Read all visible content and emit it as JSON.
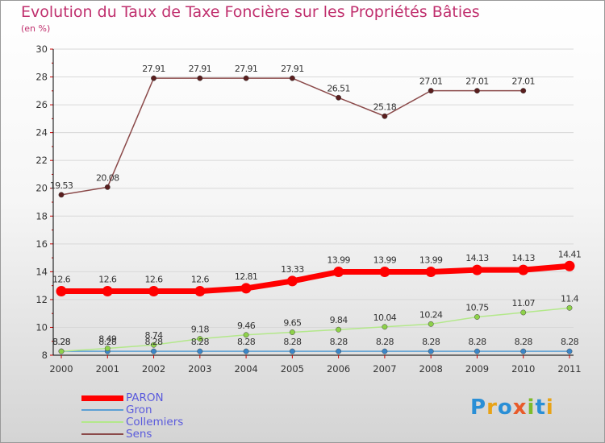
{
  "title": "Evolution du Taux de Taxe Foncière sur les Propriétés Bâties",
  "unit_label": "(en %)",
  "logo": {
    "letters": [
      "P",
      "r",
      "o",
      "x",
      "i",
      "t",
      "i"
    ],
    "colors": [
      "#2a8fd6",
      "#e8a317",
      "#2a8fd6",
      "#e85a2a",
      "#7dbb2a",
      "#2a8fd6",
      "#e8a317"
    ]
  },
  "chart_data": {
    "type": "line",
    "title": "Evolution du Taux de Taxe Foncière sur les Propriétés Bâties",
    "ylabel": "(en %)",
    "x": [
      "2000",
      "2001",
      "2002",
      "2003",
      "2004",
      "2005",
      "2006",
      "2007",
      "2008",
      "2009",
      "2010",
      "2011"
    ],
    "ylim": [
      8,
      30
    ],
    "yticks": [
      "8",
      "10",
      "12",
      "14",
      "16",
      "18",
      "20",
      "22",
      "24",
      "26",
      "28",
      "30"
    ],
    "legend_position": "bottom-left",
    "series": [
      {
        "name": "Gron",
        "color": "#5b9fd4",
        "point_color": "#3a86c8",
        "values": [
          8.28,
          8.28,
          8.28,
          8.28,
          8.28,
          8.28,
          8.28,
          8.28,
          8.28,
          8.28,
          8.28,
          8.28
        ],
        "labels": [
          "8.28",
          "8.28",
          "8.28",
          "8.28",
          "8.28",
          "8.28",
          "8.28",
          "8.28",
          "8.28",
          "8.28",
          "8.28",
          "8.28"
        ]
      },
      {
        "name": "Collemiers",
        "color": "#b3e88a",
        "point_color": "#8ed14a",
        "values": [
          8.28,
          8.49,
          8.74,
          9.18,
          9.46,
          9.65,
          9.84,
          10.04,
          10.24,
          10.75,
          11.07,
          11.4
        ],
        "labels": [
          "8.28",
          "8.49",
          "8.74",
          "9.18",
          "9.46",
          "9.65",
          "9.84",
          "10.04",
          "10.24",
          "10.75",
          "11.07",
          "11.4"
        ]
      },
      {
        "name": "Sens",
        "color": "#8b4a4a",
        "point_color": "#5a1e1e",
        "values": [
          19.53,
          20.08,
          27.91,
          27.91,
          27.91,
          27.91,
          26.51,
          25.18,
          27.01,
          27.01,
          27.01,
          null
        ],
        "labels": [
          "19.53",
          "20.08",
          "27.91",
          "27.91",
          "27.91",
          "27.91",
          "26.51",
          "25.18",
          "27.01",
          "27.01",
          "27.01",
          ""
        ]
      },
      {
        "name": "PARON",
        "color": "#ff0000",
        "point_color": "#ff0000",
        "values": [
          12.6,
          12.6,
          12.6,
          12.6,
          12.81,
          13.33,
          13.99,
          13.99,
          13.99,
          14.13,
          14.13,
          14.41
        ],
        "labels": [
          "12.6",
          "12.6",
          "12.6",
          "12.6",
          "12.81",
          "13.33",
          "13.99",
          "13.99",
          "13.99",
          "14.13",
          "14.13",
          "14.41"
        ]
      }
    ],
    "legend": [
      "PARON",
      "Gron",
      "Collemiers",
      "Sens"
    ]
  }
}
